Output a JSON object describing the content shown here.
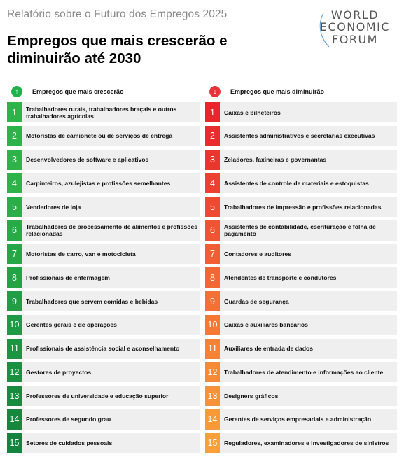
{
  "header": {
    "report_title": "Relatório sobre o Futuro dos Empregos 2025",
    "title": "Empregos que mais crescerão e diminuirão até 2030",
    "logo_lines": [
      "WORLD",
      "ECONOMIC",
      "FORUM"
    ]
  },
  "growing": {
    "heading": "Empregos que mais crescerão",
    "icon": "arrow-up-icon",
    "items": [
      {
        "rank": "1",
        "label": "Trabalhadores rurais, trabalhadores braçais e outros trabalhadores agrícolas",
        "color": "#2db34a"
      },
      {
        "rank": "2",
        "label": "Motoristas de camionete ou de serviços de entrega",
        "color": "#2db34a"
      },
      {
        "rank": "3",
        "label": "Desenvolvedores de software e aplicativos",
        "color": "#2db34a"
      },
      {
        "rank": "4",
        "label": "Carpinteiros, azulejistas e profissões semelhantes",
        "color": "#2db34a"
      },
      {
        "rank": "5",
        "label": "Vendedores de loja",
        "color": "#29ae49"
      },
      {
        "rank": "6",
        "label": "Trabalhadores de processamento de alimentos e profissões relacionadas",
        "color": "#27aa48"
      },
      {
        "rank": "7",
        "label": "Motoristas de carro, van e motocicleta",
        "color": "#25a647"
      },
      {
        "rank": "8",
        "label": "Profissionais de enfermagem",
        "color": "#23a246"
      },
      {
        "rank": "9",
        "label": "Trabalhadores que servem comidas e bebidas",
        "color": "#219e45"
      },
      {
        "rank": "10",
        "label": "Gerentes gerais e de operações",
        "color": "#1f9a44"
      },
      {
        "rank": "11",
        "label": "Profissionais de assistência social e aconselhamento",
        "color": "#1c9542"
      },
      {
        "rank": "12",
        "label": "Gestores de proyectos",
        "color": "#1a9141"
      },
      {
        "rank": "13",
        "label": "Professores de universidade e educação superior",
        "color": "#178c3f"
      },
      {
        "rank": "14",
        "label": "Professores de segundo grau",
        "color": "#15883e"
      },
      {
        "rank": "15",
        "label": "Setores de cuidados pessoais",
        "color": "#13843d"
      }
    ]
  },
  "declining": {
    "heading": "Empregos que mais diminuirão",
    "icon": "arrow-down-icon",
    "items": [
      {
        "rank": "1",
        "label": "Caixas e bilheteiros",
        "color": "#e8262c"
      },
      {
        "rank": "2",
        "label": "Assistentes administrativos e secretárias executivas",
        "color": "#e92d2d"
      },
      {
        "rank": "3",
        "label": "Zeladores, faxineiras e governantas",
        "color": "#eb362e"
      },
      {
        "rank": "4",
        "label": "Assistentes de controle de materiais e estoquistas",
        "color": "#ed4030"
      },
      {
        "rank": "5",
        "label": "Trabalhadores de impressão e profissões relacionadas",
        "color": "#ef4a31"
      },
      {
        "rank": "6",
        "label": "Assistentes de contabilidade, escrituração e folha de pagamento",
        "color": "#f05432"
      },
      {
        "rank": "7",
        "label": "Contadores e auditores",
        "color": "#f25e33"
      },
      {
        "rank": "8",
        "label": "Atendentes de transporte e condutores",
        "color": "#f36734"
      },
      {
        "rank": "9",
        "label": "Guardas de segurança",
        "color": "#f47035"
      },
      {
        "rank": "10",
        "label": "Caixas e auxiliares bancários",
        "color": "#f57935"
      },
      {
        "rank": "11",
        "label": "Auxiliares de entrada de dados",
        "color": "#f68236"
      },
      {
        "rank": "12",
        "label": "Trabalhadores de atendimento e informações ao cliente",
        "color": "#f78a37"
      },
      {
        "rank": "13",
        "label": "Designers gráficos",
        "color": "#f89238"
      },
      {
        "rank": "14",
        "label": "Gerentes de serviços empresariais e administração",
        "color": "#f99a39"
      },
      {
        "rank": "15",
        "label": "Reguladores, examinadores e investigadores de sinistros",
        "color": "#fa9f3a"
      }
    ]
  }
}
